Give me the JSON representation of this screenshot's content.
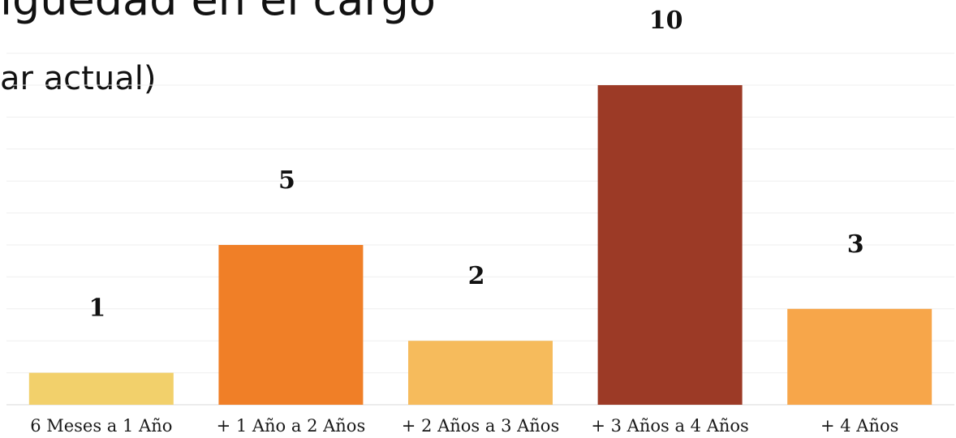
{
  "header": {
    "title": "igüedad en el cargo",
    "subtitle": "ar actual)"
  },
  "chart_data": {
    "type": "bar",
    "categories": [
      "6 Meses a 1 Año",
      "+ 1 Año a 2 Años",
      "+ 2 Años a 3 Años",
      "+ 3 Años a 4 Años",
      "+ 4 Años"
    ],
    "values": [
      1,
      5,
      2,
      10,
      3
    ],
    "colors": [
      "#f2d06b",
      "#f07f27",
      "#f6bb5c",
      "#9c3a26",
      "#f7a64a"
    ],
    "ylim": [
      0,
      11
    ],
    "grid": true,
    "legend": "none"
  }
}
